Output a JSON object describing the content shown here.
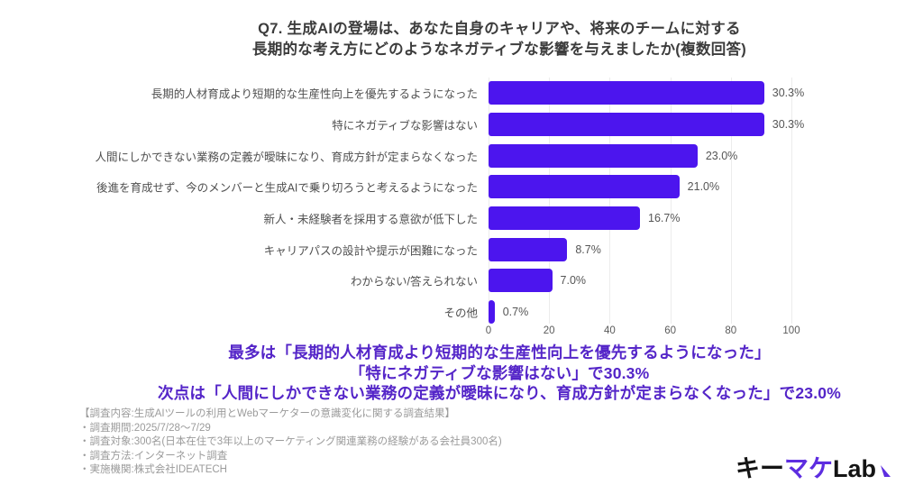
{
  "title": {
    "line1": "Q7. 生成AIの登場は、あなた自身のキャリアや、将来のチームに対する",
    "line2": "長期的な考え方にどのようなネガティブな影響を与えましたか(複数回答)"
  },
  "chart_data": {
    "type": "bar",
    "orientation": "horizontal",
    "categories": [
      "長期的人材育成より短期的な生産性向上を優先するようになった",
      "特にネガティブな影響はない",
      "人間にしかできない業務の定義が曖昧になり、育成方針が定まらなくなった",
      "後進を育成せず、今のメンバーと生成AIで乗り切ろうと考えるようになった",
      "新人・未経験者を採用する意欲が低下した",
      "キャリアパスの設計や提示が困難になった",
      "わからない/答えられない",
      "その他"
    ],
    "values_pct": [
      30.3,
      30.3,
      23.0,
      21.0,
      16.7,
      8.7,
      7.0,
      0.7
    ],
    "value_labels": [
      "30.3%",
      "30.3%",
      "23.0%",
      "21.0%",
      "16.7%",
      "8.7%",
      "7.0%",
      "0.7%"
    ],
    "axis_counts": [
      91,
      91,
      69,
      63,
      50,
      26,
      21,
      2
    ],
    "xlim": [
      0,
      100
    ],
    "x_ticks": [
      0,
      20,
      40,
      60,
      80,
      100
    ],
    "grid": true,
    "legend": "none",
    "bar_color": "#4c15ee",
    "grid_color": "#ececec"
  },
  "summary": {
    "line1": "最多は「長期的人材育成より短期的な生産性向上を優先するようになった」",
    "line2": "「特にネガティブな影響はない」で30.3%",
    "line3": "次点は「人間にしかできない業務の定義が曖昧になり、育成方針が定まらなくなった」で23.0%"
  },
  "survey_info": {
    "header": "【調査内容:生成AIツールの利用とWebマーケターの意識変化に関する調査結果】",
    "items": [
      "・調査期間:2025/7/28〜7/29",
      "・調査対象:300名(日本在住で3年以上のマーケティング関連業務の経験がある会社員300名)",
      "・調査方法:インターネット調査",
      "・実施機関:株式会社IDEATECH"
    ]
  },
  "logo": {
    "text_kii": "キー",
    "text_make": "マケ",
    "text_lab": "Lab"
  },
  "colors": {
    "bar": "#4c15ee",
    "summary_text": "#5425c8",
    "logo_accent": "#5d2de0",
    "title_text": "#3c3c3c",
    "label_text": "#4f4f4f",
    "value_text": "#555555",
    "axis_text": "#5a5a5a",
    "note_text": "#9b9b9b",
    "gridline": "#ececec"
  }
}
